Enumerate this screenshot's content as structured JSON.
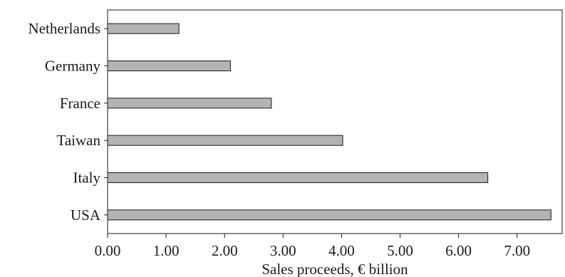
{
  "chart_data": {
    "type": "bar",
    "orientation": "horizontal",
    "categories": [
      "Netherlands",
      "Germany",
      "France",
      "Taiwan",
      "Italy",
      "USA"
    ],
    "values": [
      1.22,
      2.1,
      2.8,
      4.02,
      6.5,
      7.58
    ],
    "xlabel": "Sales proceeds, € billion",
    "ylabel": "",
    "xlim": [
      0,
      7.75
    ],
    "xticks": [
      0,
      1,
      2,
      3,
      4,
      5,
      6,
      7
    ],
    "xtick_labels": [
      "0.00",
      "1.00",
      "2.00",
      "3.00",
      "4.00",
      "5.00",
      "6.00",
      "7.00"
    ],
    "grid": false,
    "bar_color": "#b4b4b4",
    "bar_edge_color": "#1a1a1a"
  }
}
